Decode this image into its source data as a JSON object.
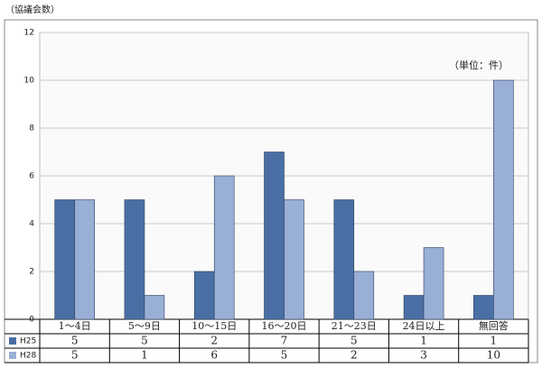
{
  "chart_data": {
    "type": "bar",
    "title": "（協議会数）",
    "annotation": "（単位：件）",
    "categories": [
      "1～4日",
      "5～9日",
      "10～15日",
      "16～20日",
      "21～23日",
      "24日以上",
      "無回答"
    ],
    "series": [
      {
        "name": "H25",
        "color": "#4a6fa5",
        "values": [
          5,
          5,
          2,
          7,
          5,
          1,
          1
        ]
      },
      {
        "name": "H28",
        "color": "#9aafd6",
        "values": [
          5,
          1,
          6,
          5,
          2,
          3,
          10
        ]
      }
    ],
    "ylim": [
      0,
      12
    ],
    "yticks": [
      0,
      2,
      4,
      6,
      8,
      10,
      12
    ],
    "grid": true
  }
}
